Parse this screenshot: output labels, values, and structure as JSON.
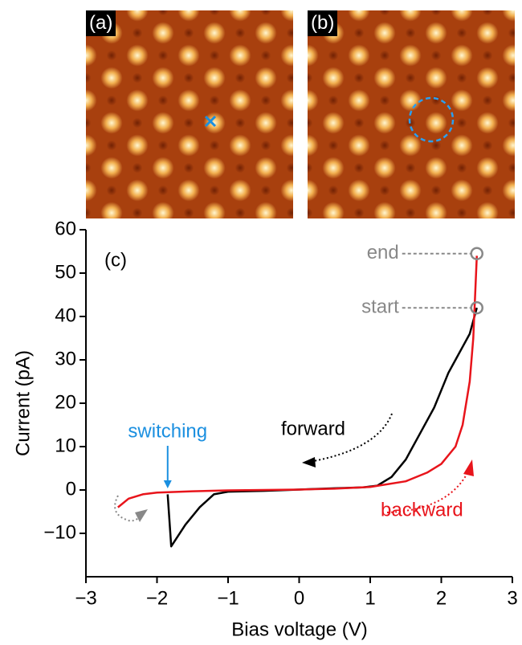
{
  "chart_data": {
    "type": "line",
    "panels": [
      "(a)",
      "(b)"
    ],
    "panel_label": "(c)",
    "xlabel": "Bias voltage (V)",
    "ylabel": "Current (pA)",
    "xlim": [
      -3,
      3
    ],
    "ylim": [
      -20,
      60
    ],
    "xticks": [
      {
        "value": -3,
        "label": "−3"
      },
      {
        "value": -2,
        "label": "−2"
      },
      {
        "value": -1,
        "label": "−1"
      },
      0,
      1,
      2,
      3
    ],
    "yticks": [
      {
        "value": -10,
        "label": "−10"
      },
      0,
      10,
      20,
      30,
      40,
      50,
      60
    ],
    "series": [
      {
        "name": "forward",
        "color": "#000000",
        "x": [
          2.5,
          2.4,
          2.3,
          2.2,
          2.1,
          2.0,
          1.9,
          1.7,
          1.5,
          1.3,
          1.1,
          0.9,
          0.5,
          0,
          -0.5,
          -1.0,
          -1.2,
          -1.4,
          -1.6,
          -1.8,
          -1.85
        ],
        "values": [
          42,
          36,
          33,
          30,
          27,
          23,
          19,
          13,
          7,
          3,
          1,
          0.6,
          0.4,
          0.1,
          -0.2,
          -0.4,
          -1,
          -4,
          -8,
          -13,
          -1
        ]
      },
      {
        "name": "backward",
        "color": "#e8141b",
        "x": [
          -2.55,
          -2.4,
          -2.2,
          -2.0,
          -1.5,
          -1.0,
          0,
          0.5,
          1.0,
          1.5,
          1.8,
          2.0,
          2.2,
          2.3,
          2.4,
          2.45,
          2.5
        ],
        "values": [
          -4,
          -2,
          -1,
          -0.6,
          -0.3,
          -0.1,
          0.1,
          0.3,
          0.7,
          2,
          4,
          6,
          10,
          15,
          25,
          35,
          54
        ]
      }
    ],
    "annotations": [
      {
        "text": "start",
        "x": 2.5,
        "y": 42
      },
      {
        "text": "end",
        "x": 2.5,
        "y": 54.5
      },
      {
        "text": "switching",
        "x": -1.85,
        "y": 0
      }
    ]
  }
}
